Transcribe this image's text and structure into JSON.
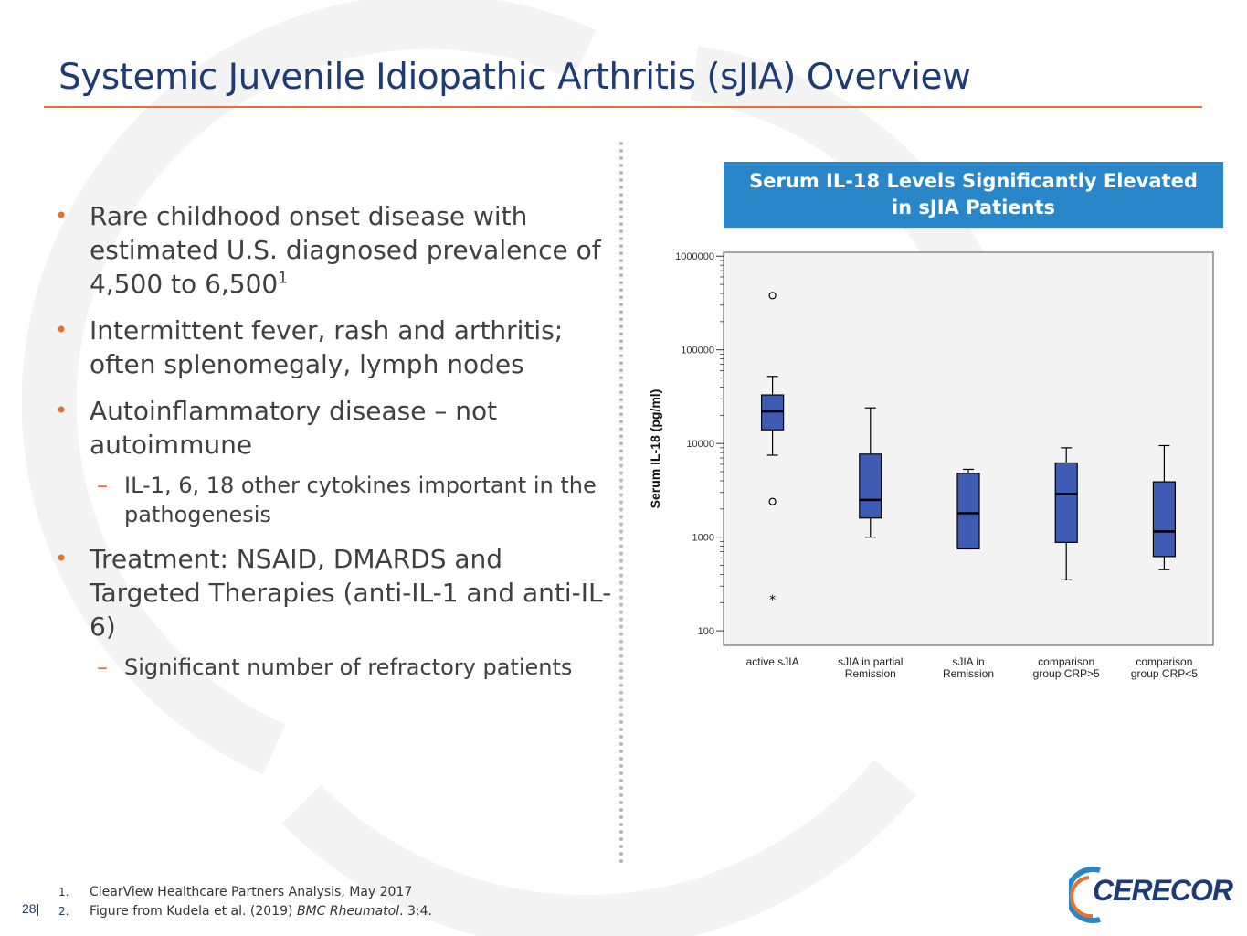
{
  "slide": {
    "title": "Systemic Juvenile Idiopathic Arthritis (sJIA) Overview",
    "page_number": "28|",
    "logo_text": "CERECOR",
    "colors": {
      "title": "#1f3b73",
      "accent": "#e2742f",
      "header_bg": "#2986c8",
      "box_fill": "#3f5cb5"
    }
  },
  "bullets": [
    {
      "text": "Rare childhood onset disease with estimated U.S. diagnosed prevalence of 4,500 to 6,500",
      "sup": "1",
      "subs": []
    },
    {
      "text": "Intermittent fever, rash and arthritis; often splenomegaly, lymph nodes",
      "sup": "",
      "subs": []
    },
    {
      "text": "Autoinflammatory disease – not autoimmune",
      "sup": "",
      "subs": [
        "IL-1, 6, 18 other cytokines important in the pathogenesis"
      ]
    },
    {
      "text": "Treatment:  NSAID, DMARDS and Targeted Therapies (anti-IL-1 and anti-IL-6)",
      "sup": "",
      "subs": [
        "Significant number of refractory patients"
      ]
    }
  ],
  "chart_header": {
    "line1": "Serum IL-18 Levels Significantly Elevated",
    "line2": "in sJIA Patients"
  },
  "chart_data": {
    "type": "box",
    "ylabel": "Serum IL-18 (pg/ml)",
    "yscale": "log",
    "ylim": [
      70,
      1100000
    ],
    "yticks": [
      100,
      1000,
      10000,
      100000,
      1000000
    ],
    "ytick_labels": [
      "100",
      "1000",
      "10000",
      "100000",
      "1000000"
    ],
    "categories": [
      [
        "active sJIA"
      ],
      [
        "sJIA in partial",
        "Remission"
      ],
      [
        "sJIA in",
        "Remission"
      ],
      [
        "comparison",
        "group CRP>5"
      ],
      [
        "comparison",
        "group CRP<5"
      ]
    ],
    "boxes": [
      {
        "whisker_low": 7500,
        "q1": 14000,
        "median": 22000,
        "q3": 33000,
        "whisker_high": 52000
      },
      {
        "whisker_low": 1000,
        "q1": 1600,
        "median": 2500,
        "q3": 7700,
        "whisker_high": 24000
      },
      {
        "whisker_low": 750,
        "q1": 750,
        "median": 1800,
        "q3": 4800,
        "whisker_high": 5300
      },
      {
        "whisker_low": 350,
        "q1": 880,
        "median": 2900,
        "q3": 6200,
        "whisker_high": 9000
      },
      {
        "whisker_low": 450,
        "q1": 620,
        "median": 1150,
        "q3": 3900,
        "whisker_high": 9500
      }
    ],
    "outliers": [
      {
        "category": 0,
        "value": 380000,
        "marker": "circle"
      },
      {
        "category": 0,
        "value": 2400,
        "marker": "circle"
      },
      {
        "category": 0,
        "value": 220,
        "marker": "star"
      }
    ],
    "grid": false
  },
  "footnotes": [
    {
      "num": "1.",
      "text": "ClearView Healthcare Partners Analysis, May 2017",
      "italic": "",
      "tail": ""
    },
    {
      "num": "2.",
      "text": "Figure from Kudela et al. (2019) ",
      "italic": "BMC Rheumatol",
      "tail": ". 3:4."
    }
  ]
}
